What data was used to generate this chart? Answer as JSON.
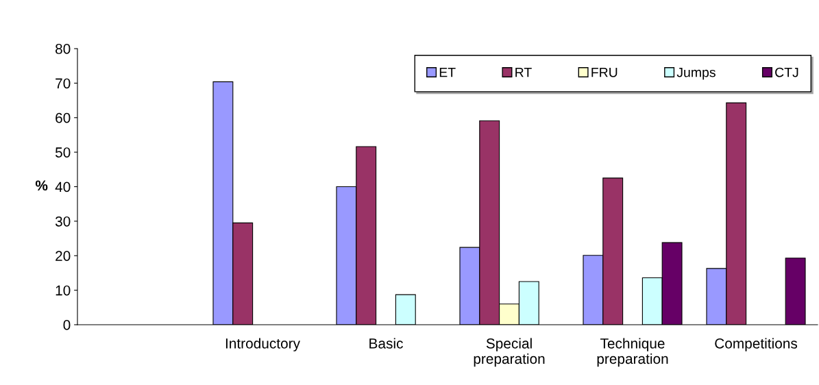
{
  "chart_data": {
    "type": "bar",
    "ylabel": "%",
    "categories": [
      null,
      "Introductory",
      "Basic",
      "Special preparation",
      "Technique preparation",
      "Competitions"
    ],
    "series": [
      {
        "name": "ET",
        "color": "#9999ff",
        "values": [
          null,
          70.4,
          40.0,
          22.4,
          20.1,
          16.3
        ]
      },
      {
        "name": "RT",
        "color": "#993366",
        "values": [
          null,
          29.5,
          51.6,
          59.1,
          42.5,
          64.3
        ]
      },
      {
        "name": "FRU",
        "color": "#ffffcc",
        "values": [
          null,
          null,
          null,
          6.0,
          null,
          null
        ]
      },
      {
        "name": "Jumps",
        "color": "#ccffff",
        "values": [
          null,
          null,
          8.7,
          12.5,
          13.6,
          null
        ]
      },
      {
        "name": "CTJ",
        "color": "#660066",
        "values": [
          null,
          null,
          null,
          null,
          23.8,
          19.3
        ]
      }
    ],
    "ylim": [
      0,
      80
    ],
    "yticks": [
      0,
      10,
      20,
      30,
      40,
      50,
      60,
      70,
      80
    ],
    "grid": false,
    "legend": "top right"
  }
}
